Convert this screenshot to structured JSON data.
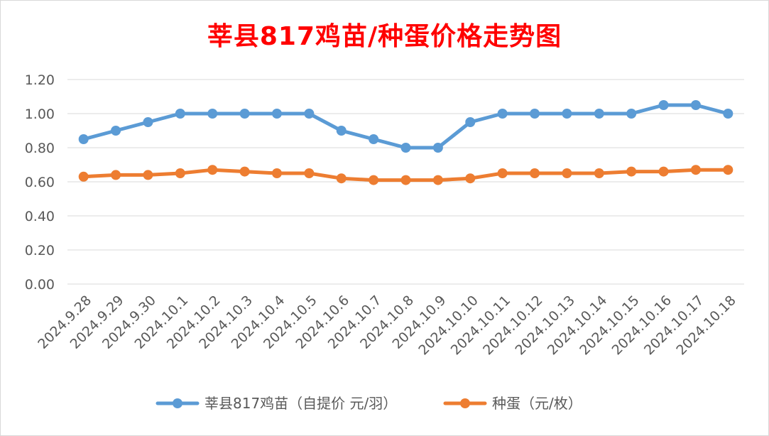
{
  "chart_data": {
    "type": "line",
    "title": "莘县817鸡苗/种蛋价格走势图",
    "categories": [
      "2024.9.28",
      "2024.9.29",
      "2024.9.30",
      "2024.10.1",
      "2024.10.2",
      "2024.10.3",
      "2024.10.4",
      "2024.10.5",
      "2024.10.6",
      "2024.10.7",
      "2024.10.8",
      "2024.10.9",
      "2024.10.10",
      "2024.10.11",
      "2024.10.12",
      "2024.10.13",
      "2024.10.14",
      "2024.10.15",
      "2024.10.16",
      "2024.10.17",
      "2024.10.18"
    ],
    "series": [
      {
        "name": "莘县817鸡苗（自提价 元/羽）",
        "color": "#5b9bd5",
        "values": [
          0.85,
          0.9,
          0.95,
          1.0,
          1.0,
          1.0,
          1.0,
          1.0,
          0.9,
          0.85,
          0.8,
          0.8,
          0.95,
          1.0,
          1.0,
          1.0,
          1.0,
          1.0,
          1.05,
          1.05,
          1.0
        ]
      },
      {
        "name": "种蛋（元/枚）",
        "color": "#ed7d31",
        "values": [
          0.63,
          0.64,
          0.64,
          0.65,
          0.67,
          0.66,
          0.65,
          0.65,
          0.62,
          0.61,
          0.61,
          0.61,
          0.62,
          0.65,
          0.65,
          0.65,
          0.65,
          0.66,
          0.66,
          0.67,
          0.67
        ]
      }
    ],
    "ylim": [
      0,
      1.2
    ],
    "yticks": [
      "0.00",
      "0.20",
      "0.40",
      "0.60",
      "0.80",
      "1.00",
      "1.20"
    ],
    "grid": true,
    "legend": "bottom"
  }
}
